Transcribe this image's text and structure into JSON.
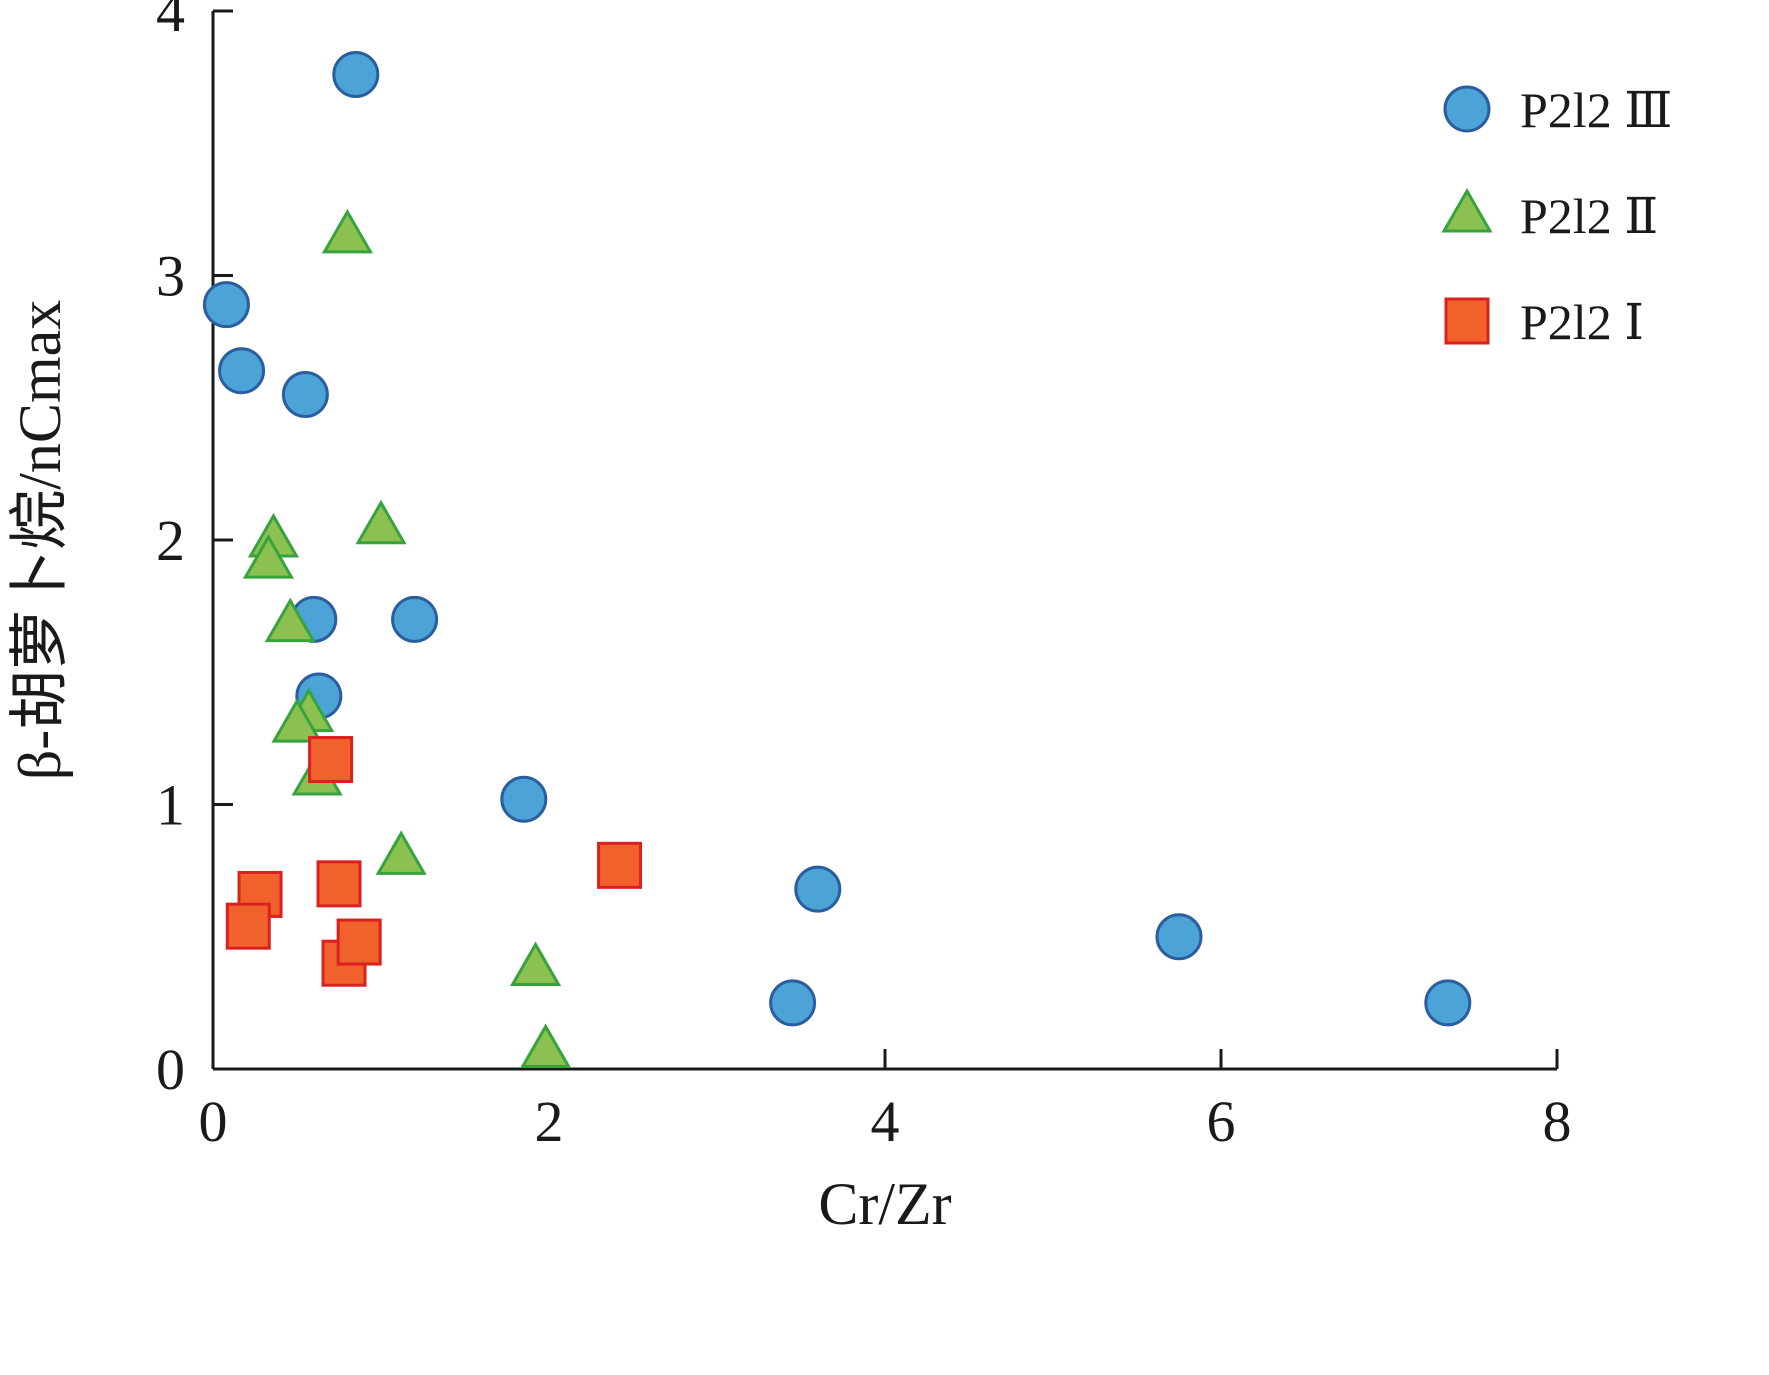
{
  "chart_data": {
    "type": "scatter",
    "xlabel": "Cr/Zr",
    "ylabel": "β-胡萝卜烷/nCmax",
    "xlim": [
      0,
      8
    ],
    "ylim": [
      0,
      4
    ],
    "x_ticks": [
      0,
      2,
      4,
      6,
      8
    ],
    "y_ticks": [
      0,
      1,
      2,
      3,
      4
    ],
    "legend_position": "top-right",
    "grid": false,
    "series": [
      {
        "name": "P2l2 Ⅲ",
        "marker": "circle",
        "fill": "#4ba3d8",
        "stroke": "#2a5e9e",
        "points": [
          [
            0.85,
            3.76
          ],
          [
            0.08,
            2.89
          ],
          [
            0.17,
            2.64
          ],
          [
            0.55,
            2.55
          ],
          [
            0.6,
            1.7
          ],
          [
            1.2,
            1.7
          ],
          [
            0.63,
            1.41
          ],
          [
            1.85,
            1.02
          ],
          [
            3.6,
            0.68
          ],
          [
            3.45,
            0.25
          ],
          [
            5.75,
            0.5
          ],
          [
            7.35,
            0.25
          ]
        ]
      },
      {
        "name": "P2l2 Ⅱ",
        "marker": "triangle",
        "fill": "#8cc152",
        "stroke": "#36a33c",
        "points": [
          [
            0.8,
            3.15
          ],
          [
            1.0,
            2.05
          ],
          [
            0.36,
            2.0
          ],
          [
            0.33,
            1.92
          ],
          [
            0.46,
            1.68
          ],
          [
            0.57,
            1.34
          ],
          [
            0.5,
            1.3
          ],
          [
            0.62,
            1.1
          ],
          [
            1.12,
            0.8
          ],
          [
            1.92,
            0.38
          ],
          [
            1.98,
            0.07
          ]
        ]
      },
      {
        "name": "P2l2 Ⅰ",
        "marker": "square",
        "fill": "#f0612c",
        "stroke": "#dc2020",
        "points": [
          [
            0.7,
            1.17
          ],
          [
            0.28,
            0.66
          ],
          [
            0.21,
            0.54
          ],
          [
            0.75,
            0.7
          ],
          [
            0.78,
            0.4
          ],
          [
            0.87,
            0.48
          ],
          [
            2.42,
            0.77
          ]
        ]
      }
    ]
  }
}
